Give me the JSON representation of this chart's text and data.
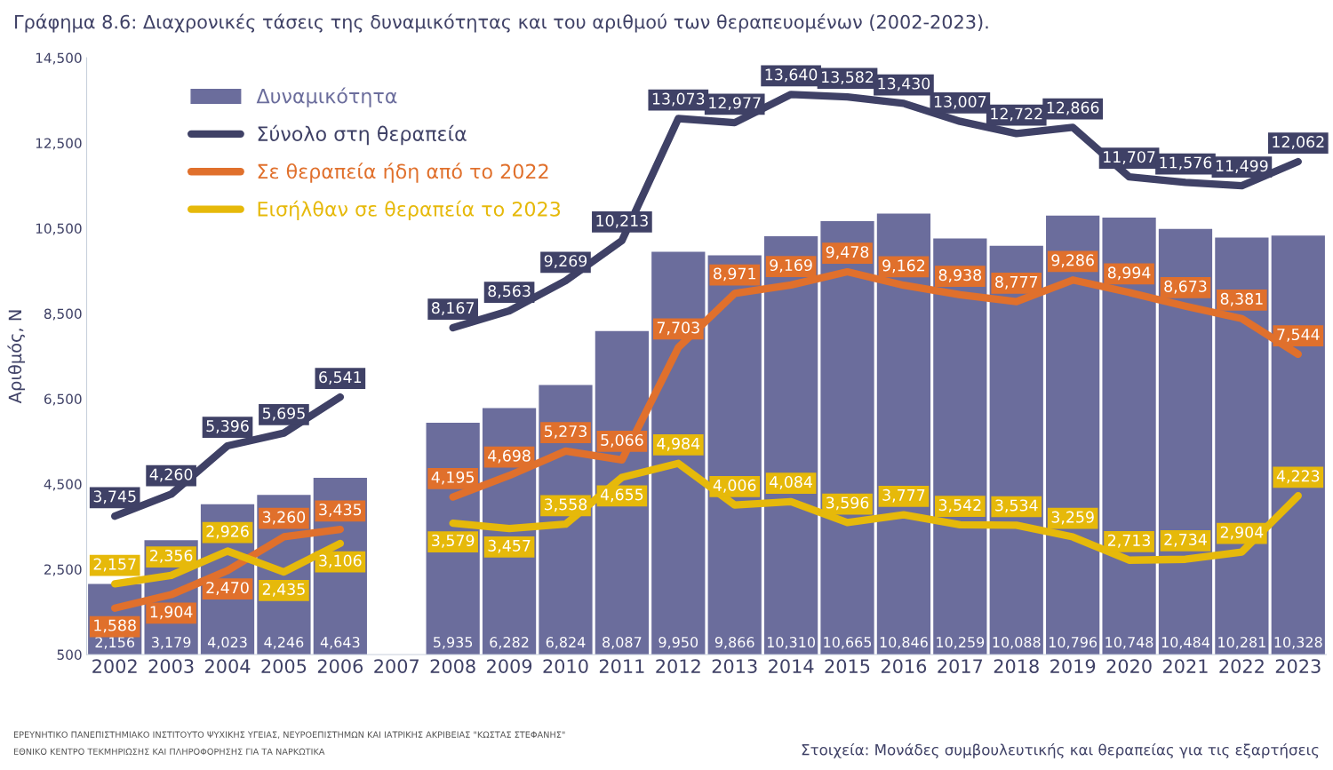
{
  "chart_data": {
    "type": "bar",
    "title": "Γράφημα 8.6: Διαχρονικές τάσεις της δυναμικότητας και του αριθμού των θεραπευομένων (2002-2023).",
    "ylabel": "Αριθμός, Ν",
    "categories": [
      "2002",
      "2003",
      "2004",
      "2005",
      "2006",
      "2007",
      "2008",
      "2009",
      "2010",
      "2011",
      "2012",
      "2013",
      "2014",
      "2015",
      "2016",
      "2017",
      "2018",
      "2019",
      "2020",
      "2021",
      "2022",
      "2023"
    ],
    "series": [
      {
        "name": "Δυναμικότητα",
        "color": "#6b6d9c",
        "values": [
          2156,
          3179,
          4023,
          4246,
          4643,
          null,
          5935,
          6282,
          6824,
          8087,
          9950,
          9866,
          10310,
          10665,
          10846,
          10259,
          10088,
          10796,
          10748,
          10484,
          10281,
          10328
        ],
        "value_labels": [
          "2,156",
          "3,179",
          "4,023",
          "4,246",
          "4,643",
          null,
          "5,935",
          "6,282",
          "6,824",
          "8,087",
          "9,950",
          "9,866",
          "10,310",
          "10,665",
          "10,846",
          "10,259",
          "10,088",
          "10,796",
          "10,748",
          "10,484",
          "10,281",
          "10,328"
        ]
      },
      {
        "name": "Σύνολο στη θεραπεία",
        "type": "line",
        "color": "#3f4166",
        "values": [
          3745,
          4260,
          5396,
          5695,
          6541,
          null,
          8167,
          8563,
          9269,
          10213,
          13073,
          12977,
          13640,
          13582,
          13430,
          13007,
          12722,
          12866,
          11707,
          11576,
          11499,
          12062
        ],
        "value_labels": [
          "3,745",
          "4,260",
          "5,396",
          "5,695",
          "6,541",
          null,
          "8,167",
          "8,563",
          "9,269",
          "10,213",
          "13,073",
          "12,977",
          "13,640",
          "13,582",
          "13,430",
          "13,007",
          "12,722",
          "12,866",
          "11,707",
          "11,576",
          "11,499",
          "12,062"
        ]
      },
      {
        "name": "Σε θεραπεία ήδη από το 2022",
        "type": "line",
        "color": "#e0702c",
        "values": [
          1588,
          1904,
          2470,
          3260,
          3435,
          null,
          4195,
          4698,
          5273,
          5066,
          7703,
          8971,
          9169,
          9478,
          9162,
          8938,
          8777,
          9286,
          8994,
          8673,
          8381,
          7544
        ],
        "value_labels": [
          "1,588",
          "1,904",
          "2,470",
          "3,260",
          "3,435",
          null,
          "4,195",
          "4,698",
          "5,273",
          "5,066",
          "7,703",
          "8,971",
          "9,169",
          "9,478",
          "9,162",
          "8,938",
          "8,777",
          "9,286",
          "8,994",
          "8,673",
          "8,381",
          "7,544"
        ]
      },
      {
        "name": "Εισήλθαν σε θεραπεία το 2023",
        "type": "line",
        "color": "#e6b90a",
        "values": [
          2157,
          2356,
          2926,
          2435,
          3106,
          null,
          3579,
          3457,
          3558,
          4655,
          4984,
          4006,
          4084,
          3596,
          3777,
          3542,
          3534,
          3259,
          2713,
          2734,
          2904,
          4223
        ],
        "value_labels": [
          "2,157",
          "2,356",
          "2,926",
          "2,435",
          "3,106",
          null,
          "3,579",
          "3,457",
          "3,558",
          "4,655",
          "4,984",
          "4,006",
          "4,084",
          "3,596",
          "3,777",
          "3,542",
          "3,534",
          "3,259",
          "2,713",
          "2,734",
          "2,904",
          "4,223"
        ]
      }
    ],
    "ylim": [
      500,
      14500
    ],
    "yticks": [
      {
        "value": 500,
        "label": "500"
      },
      {
        "value": 2500,
        "label": "2,500"
      },
      {
        "value": 4500,
        "label": "4,500"
      },
      {
        "value": 6500,
        "label": "6,500"
      },
      {
        "value": 8500,
        "label": "8,500"
      },
      {
        "value": 10500,
        "label": "10,500"
      },
      {
        "value": 12500,
        "label": "12,500"
      },
      {
        "value": 14500,
        "label": "14,500"
      }
    ],
    "legend": "top left",
    "annotations": [
      "Στοιχεία: Μονάδες συμβουλευτικής και θεραπείας για τις εξαρτήσεις",
      "ΕΡΕΥΝΗΤΙΚΟ ΠΑΝΕΠΙΣΤΗΜΙΑΚΟ ΙΝΣΤΙΤΟΥΤΟ ΨΥΧΙΚΗΣ ΥΓΕΙΑΣ, ΝΕΥΡΟΕΠΙΣΤΗΜΩΝ ΚΑΙ ΙΑΤΡΙΚΗΣ ΑΚΡΙΒΕΙΑΣ \"ΚΩΣΤΑΣ ΣΤΕΦΑΝΗΣ\"",
      "ΕΘΝΙΚΟ ΚΕΝΤΡΟ ΤΕΚΜΗΡΙΩΣΗΣ ΚΑΙ ΠΛΗΡΟΦΟΡΗΣΗΣ ΓΙΑ ΤΑ ΝΑΡΚΩΤΙΚΑ"
    ]
  }
}
